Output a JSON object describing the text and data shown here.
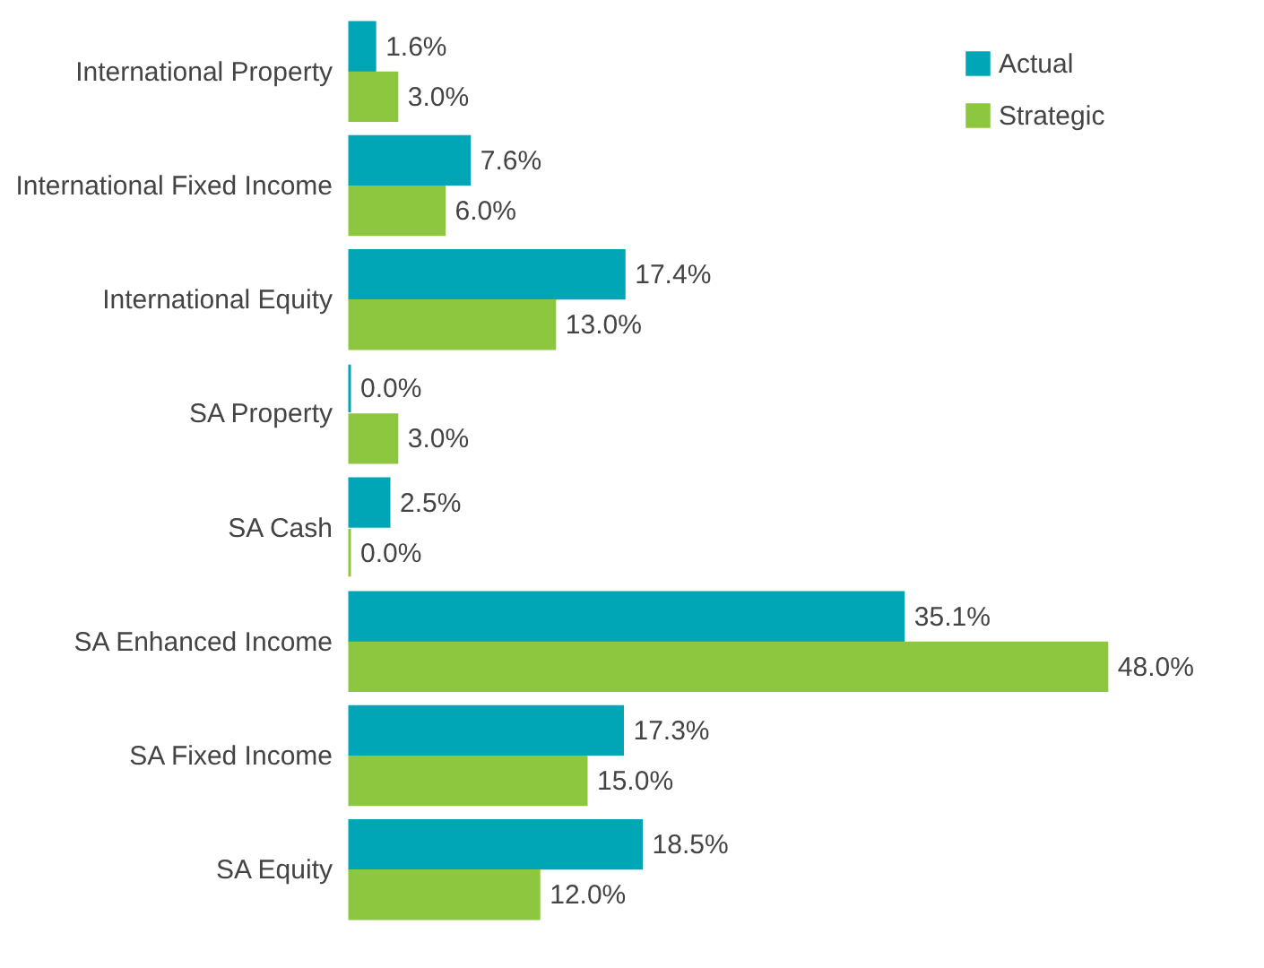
{
  "chart_data": {
    "type": "bar",
    "orientation": "horizontal",
    "legend": "top right",
    "categories": [
      "International Property",
      "International Fixed Income",
      "International Equity",
      "SA Property",
      "SA Cash",
      "SA Enhanced Income",
      "SA Fixed Income",
      "SA Equity"
    ],
    "series": [
      {
        "name": "Actual",
        "color": "#00a6b6",
        "values": [
          1.6,
          7.6,
          17.4,
          0.0,
          2.5,
          35.1,
          17.3,
          18.5
        ],
        "value_labels": [
          "1.6%",
          "7.6%",
          "17.4%",
          "0.0%",
          "2.5%",
          "35.1%",
          "17.3%",
          "18.5%"
        ]
      },
      {
        "name": "Strategic",
        "color": "#8dc63f",
        "values": [
          3.0,
          6.0,
          13.0,
          3.0,
          0.0,
          48.0,
          15.0,
          12.0
        ],
        "value_labels": [
          "3.0%",
          "6.0%",
          "13.0%",
          "3.0%",
          "0.0%",
          "48.0%",
          "15.0%",
          "12.0%"
        ]
      }
    ]
  }
}
